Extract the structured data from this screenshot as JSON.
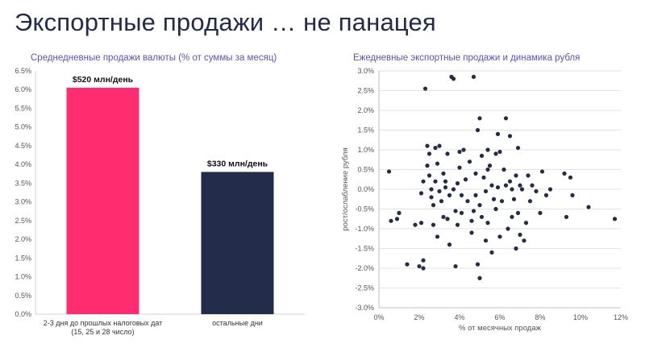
{
  "page": {
    "title": "Экспортные продажи … не панацея"
  },
  "chart_data": [
    {
      "type": "bar",
      "title": "Среднедневные продажи валюты (% от суммы за месяц)",
      "categories": [
        "2-3 дня до прошлых налоговых дат",
        "остальные дни"
      ],
      "category_sublabels": [
        "(15, 25 и 28 число)",
        ""
      ],
      "values": [
        6.05,
        3.8
      ],
      "data_labels": [
        "$520 млн/день",
        "$330 млн/день"
      ],
      "bar_colors": [
        "#ff2d6f",
        "#232d4b"
      ],
      "yticks": [
        "0.0%",
        "0.5%",
        "1.0%",
        "1.5%",
        "2.0%",
        "2.5%",
        "3.0%",
        "3.5%",
        "4.0%",
        "4.5%",
        "5.0%",
        "5.5%",
        "6.0%",
        "6.5%"
      ],
      "ylim": [
        0,
        6.5
      ],
      "grid": false
    },
    {
      "type": "scatter",
      "title": "Ежедневные экспортные продажи и динамика рубля",
      "xlabel": "% от месячных продаж",
      "ylabel": "рост/ослабление рубля",
      "xticks": [
        "0%",
        "2%",
        "4%",
        "6%",
        "8%",
        "10%",
        "12%"
      ],
      "yticks": [
        "3.0%",
        "2.5%",
        "2.0%",
        "1.5%",
        "1.0%",
        "0.5%",
        "0.0%",
        "-0.5%",
        "-1.0%",
        "-1.5%",
        "-2.0%",
        "-2.5%",
        "-3.0%"
      ],
      "xlim": [
        0,
        12
      ],
      "ylim": [
        -3,
        3
      ],
      "point_color": "#232d4b",
      "grid": true,
      "points": [
        [
          0.5,
          0.45
        ],
        [
          0.6,
          -0.8
        ],
        [
          0.9,
          -0.75
        ],
        [
          1.0,
          -0.6
        ],
        [
          1.4,
          -1.9
        ],
        [
          1.8,
          -0.9
        ],
        [
          2.0,
          -1.95
        ],
        [
          2.1,
          -0.85
        ],
        [
          2.2,
          -1.8
        ],
        [
          2.2,
          -2.0
        ],
        [
          2.1,
          -0.1
        ],
        [
          2.2,
          0.2
        ],
        [
          2.3,
          2.55
        ],
        [
          2.4,
          0.6
        ],
        [
          2.4,
          1.1
        ],
        [
          2.5,
          0.9
        ],
        [
          2.5,
          0.35
        ],
        [
          2.6,
          -0.2
        ],
        [
          2.6,
          0.0
        ],
        [
          2.7,
          -0.4
        ],
        [
          2.7,
          -0.9
        ],
        [
          2.8,
          1.05
        ],
        [
          2.8,
          0.2
        ],
        [
          2.9,
          0.65
        ],
        [
          2.9,
          -1.2
        ],
        [
          3.0,
          -0.05
        ],
        [
          3.0,
          1.1
        ],
        [
          3.1,
          -0.3
        ],
        [
          3.2,
          0.4
        ],
        [
          3.2,
          -0.7
        ],
        [
          3.3,
          0.05
        ],
        [
          3.3,
          0.2
        ],
        [
          3.4,
          0.9
        ],
        [
          3.4,
          -0.75
        ],
        [
          3.5,
          -1.4
        ],
        [
          3.5,
          -0.15
        ],
        [
          3.6,
          2.85
        ],
        [
          3.7,
          2.8
        ],
        [
          3.7,
          0.0
        ],
        [
          3.8,
          -1.95
        ],
        [
          3.8,
          -0.55
        ],
        [
          3.9,
          0.15
        ],
        [
          3.9,
          -0.9
        ],
        [
          4.0,
          0.95
        ],
        [
          4.0,
          0.55
        ],
        [
          4.1,
          -0.15
        ],
        [
          4.1,
          -0.6
        ],
        [
          4.2,
          1.0
        ],
        [
          4.3,
          0.25
        ],
        [
          4.4,
          -0.3
        ],
        [
          4.5,
          0.7
        ],
        [
          4.6,
          -0.8
        ],
        [
          4.6,
          -1.1
        ],
        [
          4.7,
          2.85
        ],
        [
          4.7,
          -0.55
        ],
        [
          4.8,
          0.4
        ],
        [
          4.8,
          -0.15
        ],
        [
          4.9,
          1.5
        ],
        [
          4.9,
          -1.9
        ],
        [
          5.0,
          -2.25
        ],
        [
          5.0,
          1.8
        ],
        [
          5.0,
          -0.4
        ],
        [
          5.1,
          0.85
        ],
        [
          5.1,
          -0.7
        ],
        [
          5.2,
          0.3
        ],
        [
          5.3,
          -1.3
        ],
        [
          5.3,
          -0.05
        ],
        [
          5.4,
          1.0
        ],
        [
          5.4,
          0.5
        ],
        [
          5.4,
          -0.85
        ],
        [
          5.5,
          0.6
        ],
        [
          5.6,
          0.1
        ],
        [
          5.6,
          -1.6
        ],
        [
          5.7,
          -0.25
        ],
        [
          5.8,
          0.9
        ],
        [
          5.8,
          -0.5
        ],
        [
          5.9,
          1.4
        ],
        [
          5.9,
          0.05
        ],
        [
          6.0,
          0.95
        ],
        [
          6.0,
          -1.2
        ],
        [
          6.1,
          -0.3
        ],
        [
          6.2,
          0.5
        ],
        [
          6.3,
          1.8
        ],
        [
          6.3,
          0.1
        ],
        [
          6.4,
          -1.0
        ],
        [
          6.5,
          1.35
        ],
        [
          6.5,
          0.2
        ],
        [
          6.6,
          0.0
        ],
        [
          6.6,
          -0.7
        ],
        [
          6.7,
          -0.25
        ],
        [
          6.8,
          0.35
        ],
        [
          6.8,
          -1.5
        ],
        [
          6.9,
          1.05
        ],
        [
          6.9,
          -0.6
        ],
        [
          7.0,
          -1.15
        ],
        [
          7.0,
          0.1
        ],
        [
          7.1,
          0.0
        ],
        [
          7.2,
          -1.3
        ],
        [
          7.3,
          -0.85
        ],
        [
          7.4,
          0.35
        ],
        [
          7.5,
          -0.3
        ],
        [
          7.6,
          0.1
        ],
        [
          7.8,
          -0.05
        ],
        [
          8.0,
          -0.6
        ],
        [
          8.1,
          0.45
        ],
        [
          8.3,
          -0.15
        ],
        [
          8.5,
          0.0
        ],
        [
          9.2,
          0.4
        ],
        [
          9.3,
          -0.7
        ],
        [
          9.5,
          0.3
        ],
        [
          9.6,
          -0.15
        ],
        [
          10.4,
          -0.45
        ],
        [
          11.7,
          -0.75
        ]
      ]
    }
  ]
}
